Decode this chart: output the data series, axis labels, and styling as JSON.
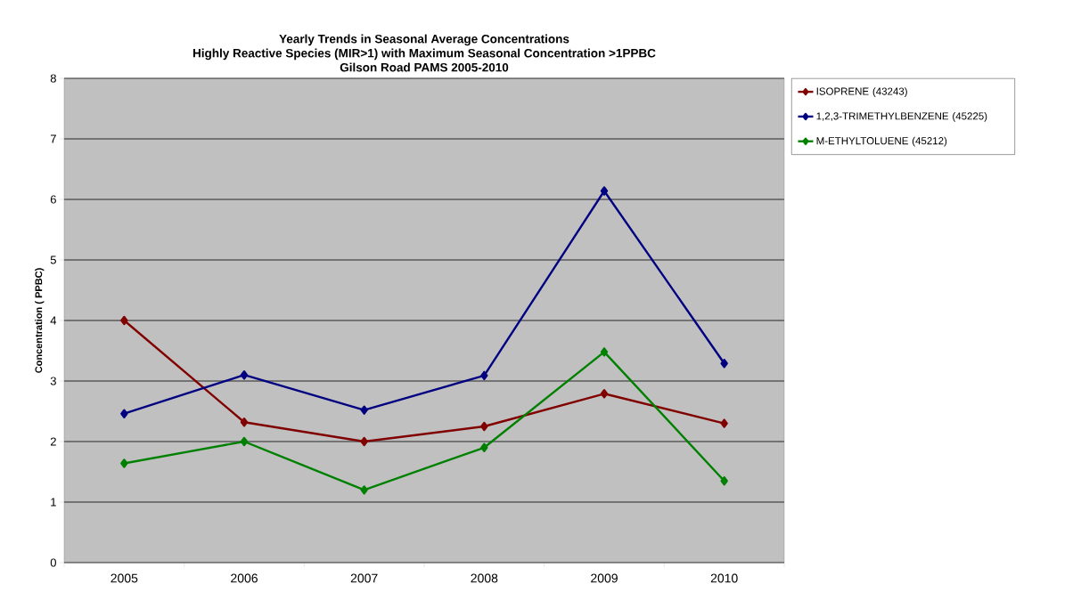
{
  "chart_data": {
    "type": "line",
    "title": "Yearly Trends in Seasonal Average Concentrations",
    "subtitle": "Highly Reactive Species (MIR>1) with Maximum Seasonal Concentration >1PPBC",
    "annotations": [
      "Gilson Road PAMS 2005-2010"
    ],
    "ylabel": "Concentration ( PPBC)",
    "categories": [
      "2005",
      "2006",
      "2007",
      "2008",
      "2009",
      "2010"
    ],
    "series": [
      {
        "name": "ISOPRENE (43243)",
        "color": "#800000",
        "values": [
          4.0,
          2.32,
          2.0,
          2.25,
          2.79,
          2.3
        ]
      },
      {
        "name": "1,2,3-TRIMETHYLBENZENE (45225)",
        "color": "#000080",
        "values": [
          2.46,
          3.1,
          2.52,
          3.09,
          6.14,
          3.29
        ]
      },
      {
        "name": "M-ETHYLTOLUENE (45212)",
        "color": "#008000",
        "values": [
          1.64,
          2.0,
          1.2,
          1.9,
          3.48,
          1.35
        ]
      }
    ],
    "ylim": [
      0,
      8
    ],
    "yticks": [
      0,
      1,
      2,
      3,
      4,
      5,
      6,
      7,
      8
    ],
    "grid": "y",
    "legend": "right",
    "marker": "diamond",
    "line_style": "solid"
  }
}
